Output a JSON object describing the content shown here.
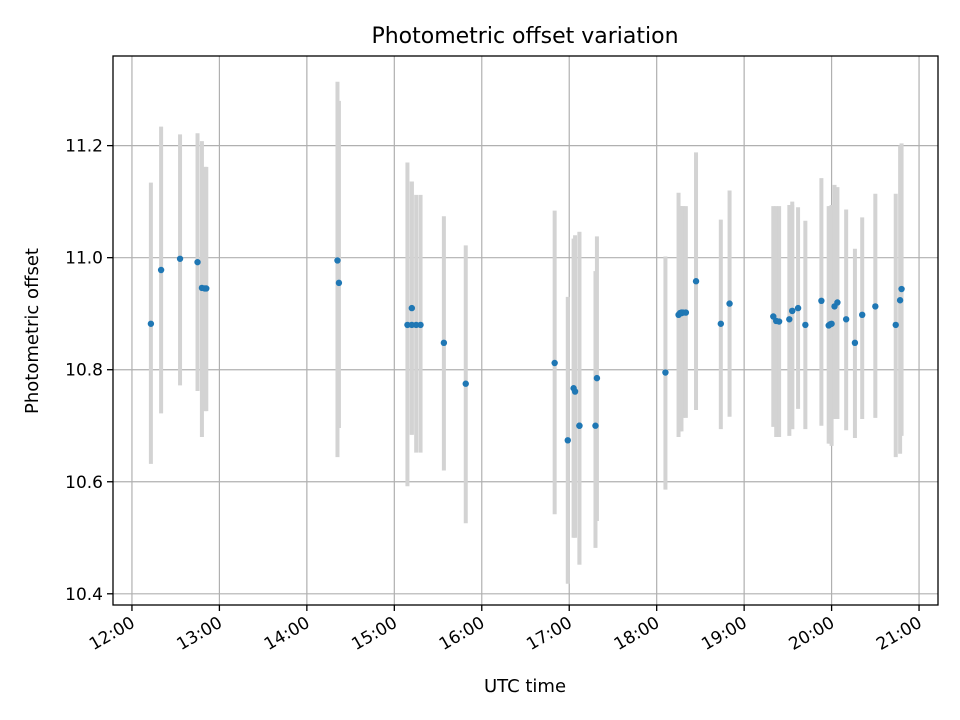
{
  "chart_data": {
    "type": "scatter",
    "title": "Photometric offset variation",
    "xlabel": "UTC time",
    "ylabel": "Photometric offset",
    "x_tick_labels": [
      "12:00",
      "13:00",
      "14:00",
      "15:00",
      "16:00",
      "17:00",
      "18:00",
      "19:00",
      "20:00",
      "21:00"
    ],
    "y_tick_labels": [
      "10.4",
      "10.6",
      "10.8",
      "11.0",
      "11.2"
    ],
    "y_ticks": [
      10.4,
      10.6,
      10.8,
      11.0,
      11.2
    ],
    "xlim": [
      "11:47",
      "21:13"
    ],
    "ylim": [
      10.38,
      11.36
    ],
    "grid": true,
    "colors": {
      "points": "#1f77b4",
      "errorbars": "#d3d3d3"
    },
    "series": [
      {
        "x": [
          "12:13",
          "12:20",
          "12:33",
          "12:45",
          "12:48",
          "12:50",
          "12:51",
          "14:21",
          "14:22",
          "15:09",
          "15:12",
          "15:12",
          "15:15",
          "15:18",
          "15:34",
          "15:49",
          "16:50",
          "16:59",
          "17:03",
          "17:04",
          "17:07",
          "17:07",
          "17:18",
          "17:19",
          "18:06",
          "18:15",
          "18:16",
          "18:17",
          "18:17",
          "18:18",
          "18:20",
          "18:27",
          "18:44",
          "18:50",
          "19:20",
          "19:22",
          "19:24",
          "19:31",
          "19:33",
          "19:33",
          "19:37",
          "19:42",
          "19:53",
          "19:58",
          "19:59",
          "20:00",
          "20:02",
          "20:04",
          "20:10",
          "20:16",
          "20:21",
          "20:30",
          "20:44",
          "20:47",
          "20:48"
        ],
        "y": [
          10.882,
          10.978,
          10.998,
          10.992,
          10.946,
          10.945,
          10.945,
          10.995,
          10.955,
          10.88,
          10.91,
          10.88,
          10.88,
          10.88,
          10.848,
          10.775,
          10.812,
          10.674,
          10.767,
          10.761,
          10.7,
          10.7,
          10.7,
          10.785,
          10.795,
          10.898,
          10.901,
          10.901,
          10.902,
          10.902,
          10.902,
          10.958,
          10.882,
          10.918,
          10.895,
          10.887,
          10.886,
          10.89,
          10.905,
          10.905,
          10.91,
          10.88,
          10.923,
          10.879,
          10.881,
          10.882,
          10.913,
          10.92,
          10.89,
          10.848,
          10.898,
          10.913,
          10.88,
          10.924,
          10.944
        ],
        "ylow": [
          10.632,
          10.722,
          10.772,
          10.762,
          10.68,
          10.726,
          10.726,
          10.644,
          10.696,
          10.592,
          10.684,
          10.684,
          10.652,
          10.652,
          10.62,
          10.526,
          10.542,
          10.418,
          10.5,
          10.5,
          10.452,
          10.452,
          10.482,
          10.53,
          10.586,
          10.68,
          10.69,
          10.69,
          10.714,
          10.714,
          10.714,
          10.728,
          10.694,
          10.716,
          10.698,
          10.68,
          10.68,
          10.682,
          10.694,
          10.694,
          10.73,
          10.694,
          10.7,
          10.668,
          10.668,
          10.664,
          10.712,
          10.712,
          10.692,
          10.678,
          10.712,
          10.714,
          10.644,
          10.65,
          10.682
        ],
        "yhigh": [
          11.134,
          11.234,
          11.22,
          11.222,
          11.208,
          11.162,
          11.162,
          11.314,
          11.28,
          11.17,
          11.136,
          11.136,
          11.112,
          11.112,
          11.074,
          11.022,
          11.084,
          10.93,
          11.034,
          11.04,
          11.046,
          11.046,
          10.976,
          11.038,
          11.002,
          11.116,
          11.092,
          11.092,
          11.092,
          11.092,
          11.092,
          11.188,
          11.068,
          11.12,
          11.092,
          11.092,
          11.092,
          11.094,
          11.094,
          11.1,
          11.09,
          11.066,
          11.142,
          11.092,
          11.092,
          11.094,
          11.13,
          11.126,
          11.086,
          11.016,
          11.072,
          11.114,
          11.114,
          11.2,
          11.204
        ]
      }
    ]
  }
}
